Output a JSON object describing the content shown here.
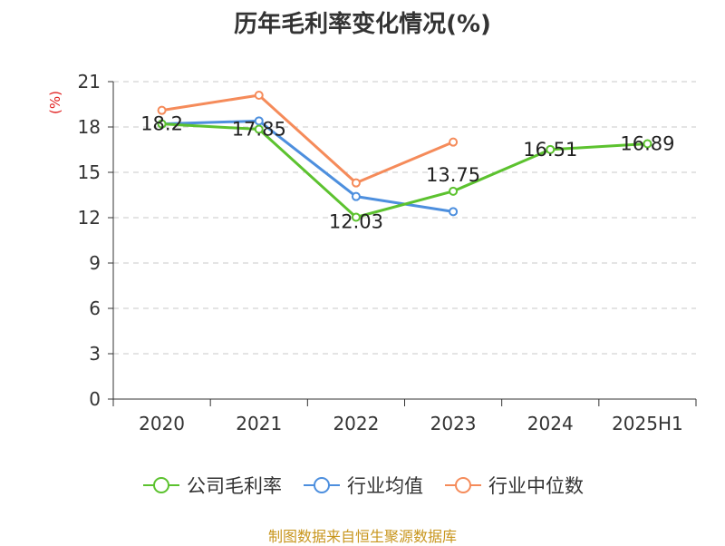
{
  "chart_data": {
    "type": "line",
    "title": "历年毛利率变化情况(%)",
    "ylabel": "(%)",
    "xlabel": "",
    "categories": [
      "2020",
      "2021",
      "2022",
      "2023",
      "2024",
      "2025H1"
    ],
    "ylim": [
      0,
      21
    ],
    "yticks": [
      0,
      3,
      6,
      9,
      12,
      15,
      18,
      21
    ],
    "grid": true,
    "legend_position": "bottom",
    "series": [
      {
        "name": "公司毛利率",
        "color": "#5cc22f",
        "values": [
          18.2,
          17.85,
          12.03,
          13.75,
          16.51,
          16.89
        ],
        "labels": [
          "18.2",
          "17.85",
          "12.03",
          "13.75",
          "16.51",
          "16.89"
        ]
      },
      {
        "name": "行业均值",
        "color": "#4d8fde",
        "values": [
          18.2,
          18.4,
          13.4,
          12.4,
          null,
          null
        ]
      },
      {
        "name": "行业中位数",
        "color": "#f58b5a",
        "values": [
          19.1,
          20.1,
          14.3,
          17.0,
          null,
          null
        ]
      }
    ]
  },
  "footer": {
    "source": "制图数据来自恒生聚源数据库"
  }
}
